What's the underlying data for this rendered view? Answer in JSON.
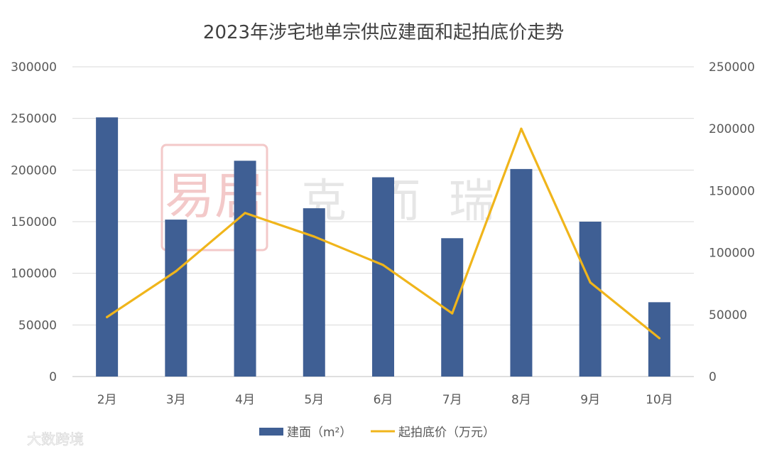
{
  "chart_data": {
    "type": "bar+line",
    "title": "2023年涉宅地单宗供应建面和起拍底价走势",
    "categories": [
      "2月",
      "3月",
      "4月",
      "5月",
      "6月",
      "7月",
      "8月",
      "9月",
      "10月"
    ],
    "series": [
      {
        "name": "建面（m²）",
        "kind": "bar",
        "axis": "left",
        "color": "#3f5f94",
        "values": [
          251000,
          152000,
          209000,
          163000,
          193000,
          134000,
          201000,
          150000,
          72000
        ]
      },
      {
        "name": "起拍底价（万元）",
        "kind": "line",
        "axis": "right",
        "color": "#f0b51b",
        "values": [
          48000,
          85000,
          132000,
          113000,
          90000,
          51000,
          200000,
          76000,
          31000
        ]
      }
    ],
    "yleft": {
      "lim": [
        0,
        300000
      ],
      "ticks": [
        "0",
        "50000",
        "100000",
        "150000",
        "200000",
        "250000",
        "300000"
      ]
    },
    "yright": {
      "lim": [
        0,
        250000
      ],
      "ticks": [
        "0",
        "50000",
        "100000",
        "150000",
        "200000",
        "250000"
      ]
    },
    "grid": true,
    "legend_position": "bottom"
  },
  "watermark": {
    "text": "克而瑞",
    "seal_glyph": "易居"
  },
  "credit": {
    "text": "大数跨境"
  }
}
